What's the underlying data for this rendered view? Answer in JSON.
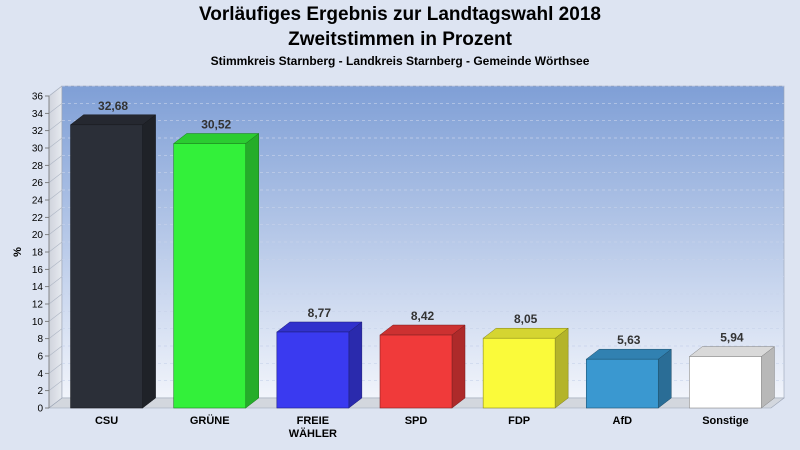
{
  "header": {
    "title_line1": "Vorläufiges Ergebnis zur Landtagswahl 2018",
    "title_line2": "Zweitstimmen in Prozent",
    "subtitle": "Stimmkreis Starnberg - Landkreis Starnberg - Gemeinde Wörthsee"
  },
  "chart_data": {
    "type": "bar",
    "title": "Vorläufiges Ergebnis zur Landtagswahl 2018 Zweitstimmen in Prozent",
    "subtitle": "Stimmkreis Starnberg - Landkreis Starnberg - Gemeinde Wörthsee",
    "ylabel": "%",
    "xlabel": "",
    "ylim": [
      0,
      36
    ],
    "yticks": [
      0,
      2,
      4,
      6,
      8,
      10,
      12,
      14,
      16,
      18,
      20,
      22,
      24,
      26,
      28,
      30,
      32,
      34,
      36
    ],
    "grid": true,
    "categories": [
      {
        "label": "CSU",
        "value": 32.68,
        "value_label": "32,68",
        "color": "#2b2f38"
      },
      {
        "label": "GRÜNE",
        "value": 30.52,
        "value_label": "30,52",
        "color": "#33f03a"
      },
      {
        "label": "FREIE\nWÄHLER",
        "value": 8.77,
        "value_label": "8,77",
        "color": "#3a3af0"
      },
      {
        "label": "SPD",
        "value": 8.42,
        "value_label": "8,42",
        "color": "#f03a3a"
      },
      {
        "label": "FDP",
        "value": 8.05,
        "value_label": "8,05",
        "color": "#fafa3a"
      },
      {
        "label": "AfD",
        "value": 5.63,
        "value_label": "5,63",
        "color": "#3a98d0"
      },
      {
        "label": "Sonstige",
        "value": 5.94,
        "value_label": "5,94",
        "color": "#ffffff"
      }
    ]
  }
}
